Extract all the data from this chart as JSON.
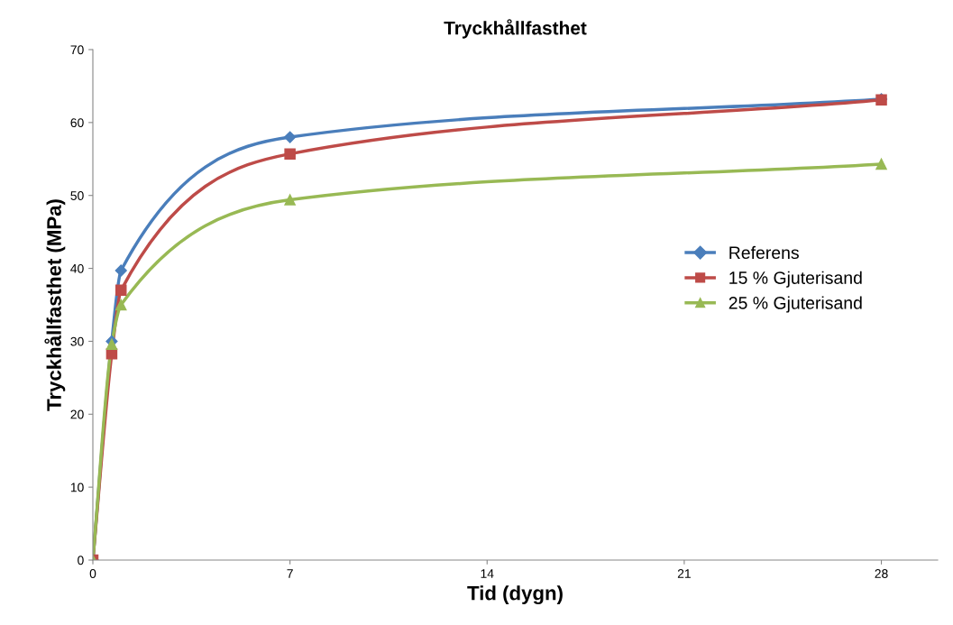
{
  "chart_data": {
    "type": "line",
    "title": "Tryckhållfasthet",
    "xlabel": "Tid (dygn)",
    "ylabel": "Tryckhållfasthet (MPa)",
    "x": [
      0,
      0.67,
      1,
      7,
      28
    ],
    "series": [
      {
        "name": "Referens",
        "color": "#4a7ebb",
        "marker": "diamond",
        "values": [
          0,
          30,
          39.7,
          58,
          63.2
        ]
      },
      {
        "name": "15 % Gjuterisand",
        "color": "#be4b48",
        "marker": "square",
        "values": [
          0,
          28.3,
          37,
          55.7,
          63.1
        ]
      },
      {
        "name": "25 % Gjuterisand",
        "color": "#98b954",
        "marker": "triangle",
        "values": [
          0,
          29.6,
          35,
          49.4,
          54.3
        ]
      }
    ],
    "xlim": [
      0,
      30
    ],
    "xticks": [
      0,
      7,
      14,
      21,
      28
    ],
    "ylim": [
      0,
      70
    ],
    "yticks": [
      0,
      10,
      20,
      30,
      40,
      50,
      60,
      70
    ],
    "grid": false,
    "legend": "right",
    "line_style": "solid"
  }
}
